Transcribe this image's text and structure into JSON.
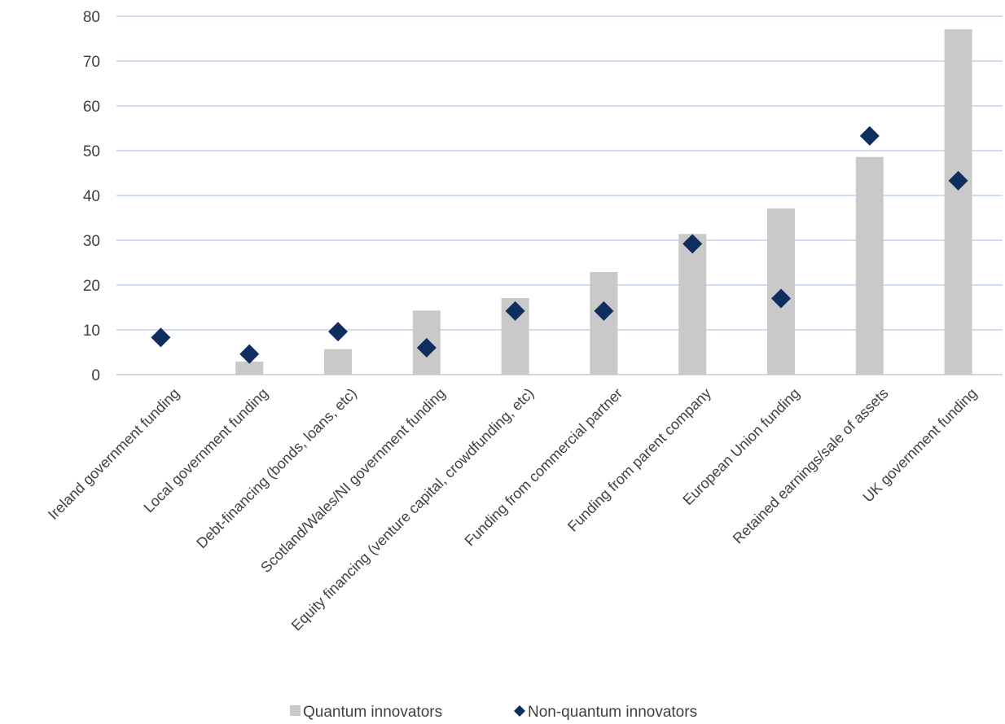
{
  "chart_data": {
    "type": "bar",
    "categories": [
      "Ireland government funding",
      "Local government funding",
      "Debt-financing (bonds, loans, etc)",
      "Scotland/Wales/NI government funding",
      "Equity financing (venture capital, crowdfunding, etc)",
      "Funding from commercial partner",
      "Funding from parent company",
      "European Union funding",
      "Retained earnings/sale of assets",
      "UK government funding"
    ],
    "series": [
      {
        "name": "Quantum innovators",
        "type": "bar",
        "color": "#c9c9c9",
        "values": [
          0,
          2.9,
          5.7,
          14.3,
          17.1,
          22.9,
          31.4,
          37.1,
          48.6,
          77.1
        ]
      },
      {
        "name": "Non-quantum innovators",
        "type": "scatter",
        "marker": "diamond",
        "color": "#0f2d5e",
        "values": [
          8.3,
          4.6,
          9.6,
          6.0,
          14.2,
          14.2,
          29.2,
          17.0,
          53.3,
          43.3
        ]
      }
    ],
    "title": "",
    "xlabel": "",
    "ylabel": "",
    "ylim": [
      0,
      80
    ],
    "yticks": [
      0,
      10,
      20,
      30,
      40,
      50,
      60,
      70,
      80
    ],
    "grid": true,
    "legend_position": "bottom"
  }
}
